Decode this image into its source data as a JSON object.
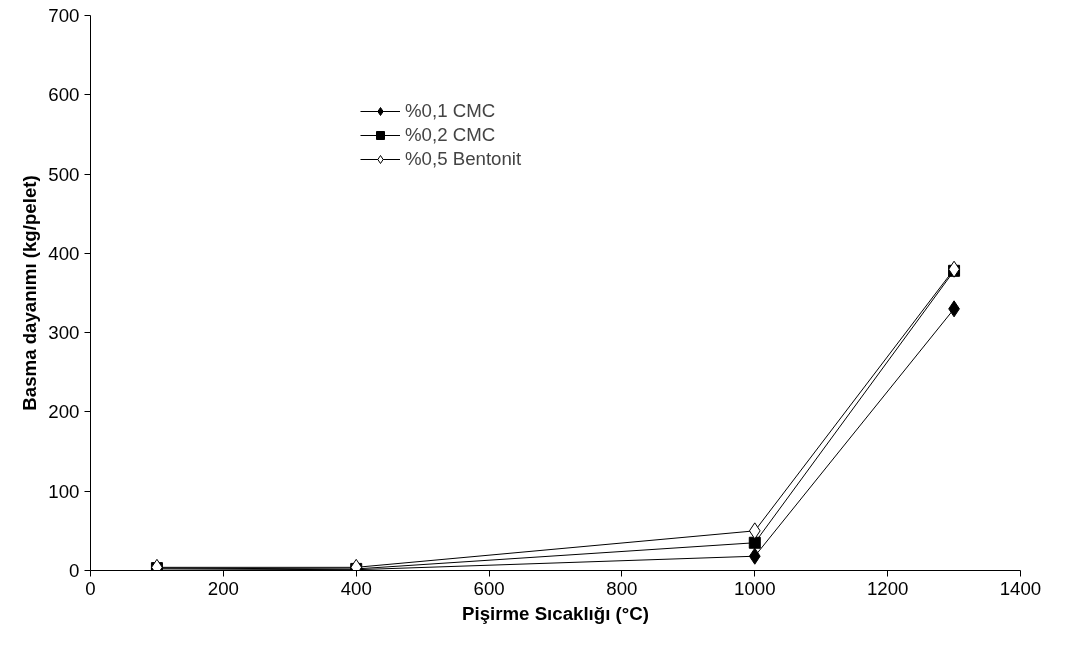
{
  "chart_data": {
    "type": "line",
    "xlabel": "Pişirme Sıcaklığı (°C)",
    "ylabel": "Basma dayanımı (kg/pelet)",
    "x": [
      100,
      400,
      1000,
      1300
    ],
    "series": [
      {
        "name": "%0,1 CMC",
        "color": "#000000",
        "marker": "diamond",
        "values": [
          2,
          1,
          18,
          330
        ]
      },
      {
        "name": "%0,2 CMC",
        "color": "#000000",
        "marker": "square",
        "values": [
          3,
          2,
          35,
          378
        ]
      },
      {
        "name": "%0,5 Bentonit",
        "color": "#ffffff",
        "marker": "diamond",
        "values": [
          4,
          4,
          50,
          380
        ]
      }
    ],
    "xlim": [
      0,
      1400
    ],
    "xticks": [
      0,
      200,
      400,
      600,
      800,
      1000,
      1200,
      1400
    ],
    "ylim": [
      0,
      700
    ],
    "yticks": [
      0,
      100,
      200,
      300,
      400,
      500,
      600,
      700
    ],
    "grid": false,
    "legend": "top",
    "line_style": "solid"
  }
}
